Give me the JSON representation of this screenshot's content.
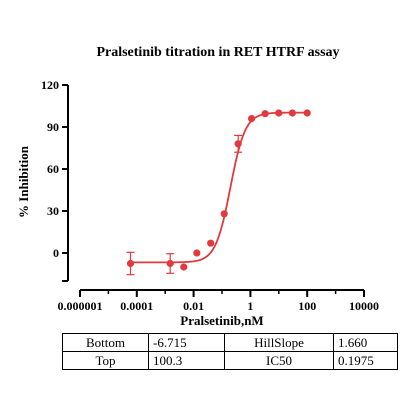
{
  "chart_data": {
    "type": "scatter",
    "title": "Pralsetinib  titration in RET HTRF assay",
    "xlabel": "Pralsetinib,nM",
    "ylabel": "% Inhibition",
    "x_scale": "log",
    "xlim": [
      1e-06,
      10000
    ],
    "ylim": [
      -20,
      120
    ],
    "x_ticks": [
      {
        "value": 1e-06,
        "label": "0.000001"
      },
      {
        "value": 0.0001,
        "label": "0.0001"
      },
      {
        "value": 0.01,
        "label": "0.01"
      },
      {
        "value": 1,
        "label": "1"
      },
      {
        "value": 100,
        "label": "100"
      },
      {
        "value": 10000,
        "label": "10000"
      }
    ],
    "y_ticks": [
      {
        "value": -20,
        "label": ""
      },
      {
        "value": 0,
        "label": "0"
      },
      {
        "value": 30,
        "label": "30"
      },
      {
        "value": 60,
        "label": "60"
      },
      {
        "value": 90,
        "label": "90"
      },
      {
        "value": 120,
        "label": "120"
      }
    ],
    "grid": false,
    "series": [
      {
        "color": "#e03a3e",
        "points": [
          {
            "x": 6e-05,
            "y": -7.5,
            "err": 8
          },
          {
            "x": 0.0015,
            "y": -7.5,
            "err": 7
          },
          {
            "x": 0.0045,
            "y": -10
          },
          {
            "x": 0.013,
            "y": 0
          },
          {
            "x": 0.04,
            "y": 7
          },
          {
            "x": 0.12,
            "y": 28
          },
          {
            "x": 0.37,
            "y": 78,
            "err": 6
          },
          {
            "x": 1.1,
            "y": 96
          },
          {
            "x": 3.3,
            "y": 99.5
          },
          {
            "x": 10,
            "y": 100
          },
          {
            "x": 30,
            "y": 100
          },
          {
            "x": 100,
            "y": 100
          }
        ],
        "fit": {
          "bottom": -6.715,
          "top": 100.3,
          "ic50": 0.1975,
          "hill_slope": 1.66
        }
      }
    ]
  },
  "params_table": [
    {
      "label1": "Bottom",
      "value1": "-6.715",
      "label2": "HillSlope",
      "value2": "1.660"
    },
    {
      "label1": "Top",
      "value1": "100.3",
      "label2": "IC50",
      "value2": "0.1975"
    }
  ]
}
